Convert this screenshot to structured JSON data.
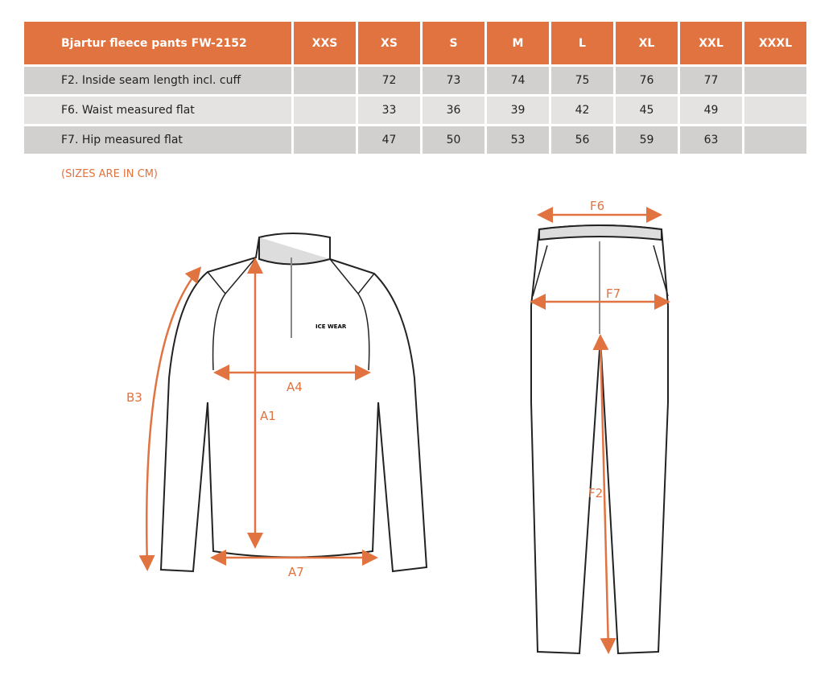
{
  "table": {
    "title": "Bjartur fleece pants FW-2152",
    "sizes": [
      "XXS",
      "XS",
      "S",
      "M",
      "L",
      "XL",
      "XXL",
      "XXXL"
    ],
    "rows": [
      {
        "label": "F2. Inside seam length incl. cuff",
        "values": [
          "",
          "72",
          "73",
          "74",
          "75",
          "76",
          "77",
          ""
        ]
      },
      {
        "label": "F6. Waist measured flat",
        "values": [
          "",
          "33",
          "36",
          "39",
          "42",
          "45",
          "49",
          ""
        ]
      },
      {
        "label": "F7. Hip measured flat",
        "values": [
          "",
          "47",
          "50",
          "53",
          "56",
          "59",
          "63",
          ""
        ]
      }
    ]
  },
  "note": "(SIZES ARE IN CM)",
  "diagram": {
    "accent": "#e07340",
    "jacket_labels": {
      "b3": "B3",
      "a1": "A1",
      "a4": "A4",
      "a7": "A7"
    },
    "pants_labels": {
      "f6": "F6",
      "f7": "F7",
      "f2": "F2"
    },
    "logo": "ICE WEAR"
  }
}
